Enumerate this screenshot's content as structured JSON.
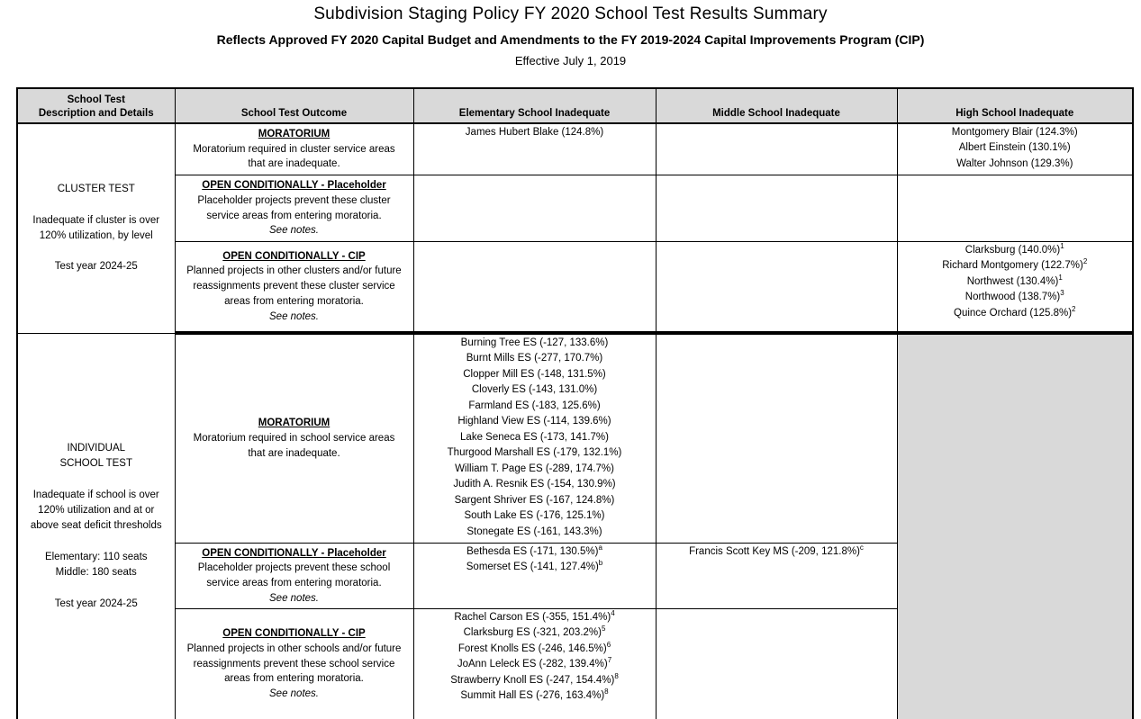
{
  "page": {
    "title": "Subdivision Staging Policy FY 2020 School Test Results Summary",
    "subtitle": "Reflects Approved FY 2020 Capital Budget and Amendments to the FY 2019-2024 Capital Improvements Program (CIP)",
    "effective": "Effective July 1, 2019"
  },
  "colors": {
    "header_bg": "#d9d9d9",
    "border": "#000000"
  },
  "table": {
    "headers": {
      "description": "School Test\nDescription and Details",
      "outcome": "School Test Outcome",
      "elementary": "Elementary School Inadequate",
      "middle": "Middle School Inadequate",
      "high": "High School Inadequate"
    },
    "cluster": {
      "description": "CLUSTER TEST\n\nInadequate if cluster is over\n120% utilization, by level\n\nTest year 2024-25",
      "rows": [
        {
          "outcome_title": "MORATORIUM",
          "outcome_body": "Moratorium required in cluster service areas\nthat are inadequate.",
          "see_notes": "",
          "es": [
            {
              "name": "James Hubert Blake (124.8%)",
              "sup": ""
            }
          ],
          "ms": [],
          "hs": [
            {
              "name": "Montgomery Blair (124.3%)",
              "sup": ""
            },
            {
              "name": "Albert Einstein (130.1%)",
              "sup": ""
            },
            {
              "name": "Walter Johnson (129.3%)",
              "sup": ""
            }
          ]
        },
        {
          "outcome_title": "OPEN CONDITIONALLY - Placeholder",
          "outcome_body": "Placeholder projects prevent these cluster\nservice areas from entering moratoria.",
          "see_notes": "See notes.",
          "es": [],
          "ms": [],
          "hs": []
        },
        {
          "outcome_title": "OPEN CONDITIONALLY - CIP",
          "outcome_body": "Planned projects in other clusters and/or future\nreassignments prevent these cluster service\nareas from entering moratoria.",
          "see_notes": "See notes.",
          "es": [],
          "ms": [],
          "hs": [
            {
              "name": "Clarksburg (140.0%)",
              "sup": "1"
            },
            {
              "name": "Richard Montgomery (122.7%)",
              "sup": "2"
            },
            {
              "name": "Northwest (130.4%)",
              "sup": "1"
            },
            {
              "name": "Northwood (138.7%)",
              "sup": "3"
            },
            {
              "name": "Quince Orchard (125.8%)",
              "sup": "2"
            }
          ]
        }
      ]
    },
    "individual": {
      "description": "INDIVIDUAL\nSCHOOL TEST\n\nInadequate if school is over\n120% utilization and at or\nabove seat deficit thresholds\n\nElementary: 110 seats\nMiddle: 180 seats\n\nTest year 2024-25",
      "rows": [
        {
          "outcome_title": "MORATORIUM",
          "outcome_body": "Moratorium required in school service areas\nthat are inadequate.",
          "see_notes": "",
          "es": [
            {
              "name": "Burning Tree ES (-127, 133.6%)",
              "sup": ""
            },
            {
              "name": "Burnt Mills ES (-277, 170.7%)",
              "sup": ""
            },
            {
              "name": "Clopper Mill ES (-148, 131.5%)",
              "sup": ""
            },
            {
              "name": "Cloverly ES (-143, 131.0%)",
              "sup": ""
            },
            {
              "name": "Farmland ES (-183, 125.6%)",
              "sup": ""
            },
            {
              "name": "Highland View ES (-114, 139.6%)",
              "sup": ""
            },
            {
              "name": "Lake Seneca ES (-173, 141.7%)",
              "sup": ""
            },
            {
              "name": "Thurgood Marshall ES (-179, 132.1%)",
              "sup": ""
            },
            {
              "name": "William T. Page ES (-289, 174.7%)",
              "sup": ""
            },
            {
              "name": "Judith A. Resnik ES (-154, 130.9%)",
              "sup": ""
            },
            {
              "name": "Sargent Shriver ES (-167, 124.8%)",
              "sup": ""
            },
            {
              "name": "South Lake ES (-176, 125.1%)",
              "sup": ""
            },
            {
              "name": "Stonegate ES (-161, 143.3%)",
              "sup": ""
            }
          ],
          "ms": []
        },
        {
          "outcome_title": "OPEN CONDITIONALLY - Placeholder",
          "outcome_body": "Placeholder projects prevent these school\nservice areas from entering moratoria.",
          "see_notes": "See notes.",
          "es": [
            {
              "name": "Bethesda ES (-171, 130.5%)",
              "sup": "a"
            },
            {
              "name": "Somerset ES (-141, 127.4%)",
              "sup": "b"
            }
          ],
          "ms": [
            {
              "name": "Francis Scott Key MS (-209, 121.8%)",
              "sup": "c"
            }
          ]
        },
        {
          "outcome_title": "OPEN CONDITIONALLY - CIP",
          "outcome_body": "Planned projects in other schools and/or future\nreassignments prevent these school service\nareas from entering moratoria.",
          "see_notes": "See notes.",
          "es": [
            {
              "name": "Rachel Carson ES (-355, 151.4%)",
              "sup": "4"
            },
            {
              "name": "Clarksburg ES (-321, 203.2%)",
              "sup": "5"
            },
            {
              "name": "Forest Knolls ES (-246, 146.5%)",
              "sup": "6"
            },
            {
              "name": "JoAnn Leleck ES (-282, 139.4%)",
              "sup": "7"
            },
            {
              "name": "Strawberry Knoll ES (-247, 154.4%)",
              "sup": "8"
            },
            {
              "name": "Summit Hall ES (-276, 163.4%)",
              "sup": "8"
            }
          ],
          "ms": []
        }
      ]
    }
  }
}
